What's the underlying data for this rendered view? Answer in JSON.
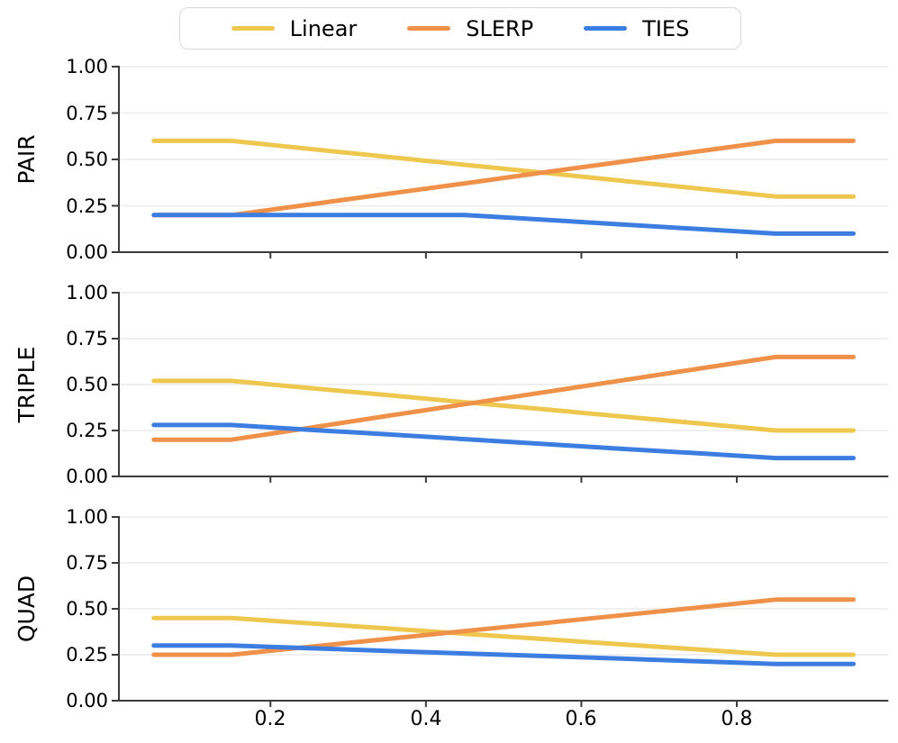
{
  "legend": {
    "items": [
      {
        "label": "Linear",
        "color": "#EEC74E"
      },
      {
        "label": "SLERP",
        "color": "#F0914A"
      },
      {
        "label": "TIES",
        "color": "#3C7DE2"
      }
    ]
  },
  "axes": {
    "row_labels": [
      "PAIR",
      "TRIPLE",
      "QUAD"
    ],
    "ytick_labels": [
      "1.00",
      "0.75",
      "0.50",
      "0.25",
      "0.00"
    ],
    "xtick_labels": [
      "0.2",
      "0.4",
      "0.6",
      "0.8"
    ]
  },
  "colors": {
    "grid": "#ececec",
    "spine": "#3b3b3b",
    "background": "#ffffff"
  },
  "chart_data": [
    {
      "type": "line",
      "title": "PAIR",
      "x": [
        0.05,
        0.15,
        0.25,
        0.35,
        0.45,
        0.55,
        0.65,
        0.75,
        0.85,
        0.95
      ],
      "series": [
        {
          "name": "Linear",
          "color": "#EEC74E",
          "values": [
            0.6,
            0.6,
            0.557,
            0.514,
            0.471,
            0.429,
            0.386,
            0.343,
            0.3,
            0.3
          ]
        },
        {
          "name": "SLERP",
          "color": "#F0914A",
          "values": [
            0.2,
            0.2,
            0.257,
            0.314,
            0.371,
            0.429,
            0.486,
            0.543,
            0.6,
            0.6
          ]
        },
        {
          "name": "TIES",
          "color": "#3C7DE2",
          "values": [
            0.2,
            0.2,
            0.2,
            0.2,
            0.2,
            0.175,
            0.15,
            0.125,
            0.1,
            0.1
          ]
        }
      ],
      "xlim": [
        0.005,
        0.995
      ],
      "ylim": [
        0,
        1
      ],
      "xticks": [
        0.2,
        0.4,
        0.6,
        0.8
      ],
      "yticks": [
        0,
        0.25,
        0.5,
        0.75,
        1.0
      ],
      "grid": "horizontal",
      "legend_position": "top-center-above-first-subplot"
    },
    {
      "type": "line",
      "title": "TRIPLE",
      "x": [
        0.05,
        0.15,
        0.25,
        0.35,
        0.45,
        0.55,
        0.65,
        0.75,
        0.85,
        0.95
      ],
      "series": [
        {
          "name": "Linear",
          "color": "#EEC74E",
          "values": [
            0.52,
            0.52,
            0.481,
            0.443,
            0.404,
            0.366,
            0.327,
            0.289,
            0.25,
            0.25
          ]
        },
        {
          "name": "SLERP",
          "color": "#F0914A",
          "values": [
            0.2,
            0.2,
            0.264,
            0.329,
            0.393,
            0.457,
            0.521,
            0.586,
            0.65,
            0.65
          ]
        },
        {
          "name": "TIES",
          "color": "#3C7DE2",
          "values": [
            0.28,
            0.28,
            0.254,
            0.229,
            0.203,
            0.177,
            0.151,
            0.126,
            0.1,
            0.1
          ]
        }
      ],
      "xlim": [
        0.005,
        0.995
      ],
      "ylim": [
        0,
        1
      ],
      "xticks": [
        0.2,
        0.4,
        0.6,
        0.8
      ],
      "yticks": [
        0,
        0.25,
        0.5,
        0.75,
        1.0
      ],
      "grid": "horizontal"
    },
    {
      "type": "line",
      "title": "QUAD",
      "x": [
        0.05,
        0.15,
        0.25,
        0.35,
        0.45,
        0.55,
        0.65,
        0.75,
        0.85,
        0.95
      ],
      "series": [
        {
          "name": "Linear",
          "color": "#EEC74E",
          "values": [
            0.45,
            0.45,
            0.421,
            0.393,
            0.364,
            0.336,
            0.307,
            0.279,
            0.25,
            0.25
          ]
        },
        {
          "name": "SLERP",
          "color": "#F0914A",
          "values": [
            0.25,
            0.25,
            0.293,
            0.336,
            0.379,
            0.421,
            0.464,
            0.507,
            0.55,
            0.55
          ]
        },
        {
          "name": "TIES",
          "color": "#3C7DE2",
          "values": [
            0.3,
            0.3,
            0.286,
            0.271,
            0.257,
            0.243,
            0.229,
            0.214,
            0.2,
            0.2
          ]
        }
      ],
      "xlim": [
        0.005,
        0.995
      ],
      "ylim": [
        0,
        1
      ],
      "xticks": [
        0.2,
        0.4,
        0.6,
        0.8
      ],
      "yticks": [
        0,
        0.25,
        0.5,
        0.75,
        1.0
      ],
      "grid": "horizontal"
    }
  ]
}
